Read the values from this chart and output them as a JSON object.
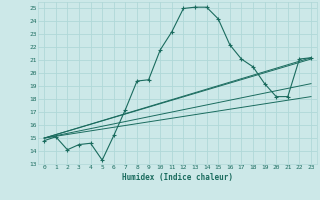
{
  "xlabel": "Humidex (Indice chaleur)",
  "xlim": [
    -0.5,
    23.5
  ],
  "ylim": [
    13,
    25.5
  ],
  "yticks": [
    13,
    14,
    15,
    16,
    17,
    18,
    19,
    20,
    21,
    22,
    23,
    24,
    25
  ],
  "xticks": [
    0,
    1,
    2,
    3,
    4,
    5,
    6,
    7,
    8,
    9,
    10,
    11,
    12,
    13,
    14,
    15,
    16,
    17,
    18,
    19,
    20,
    21,
    22,
    23
  ],
  "bg_color": "#cce8e8",
  "line_color": "#1a6b5e",
  "grid_color": "#b0d8d8",
  "main_line": {
    "x": [
      0,
      1,
      2,
      3,
      4,
      5,
      6,
      7,
      8,
      9,
      10,
      11,
      12,
      13,
      14,
      15,
      16,
      17,
      18,
      19,
      20,
      21,
      22,
      23
    ],
    "y": [
      14.8,
      15.1,
      14.1,
      14.5,
      14.6,
      13.3,
      15.2,
      17.2,
      19.4,
      19.5,
      21.8,
      23.2,
      25.0,
      25.1,
      25.1,
      24.2,
      22.2,
      21.1,
      20.5,
      19.2,
      18.2,
      18.2,
      21.1,
      21.2
    ]
  },
  "straight_lines": [
    {
      "x": [
        0,
        23
      ],
      "y": [
        15.0,
        21.2
      ]
    },
    {
      "x": [
        0,
        23
      ],
      "y": [
        15.0,
        21.1
      ]
    },
    {
      "x": [
        0,
        23
      ],
      "y": [
        15.0,
        19.2
      ]
    },
    {
      "x": [
        0,
        23
      ],
      "y": [
        15.0,
        18.2
      ]
    }
  ]
}
